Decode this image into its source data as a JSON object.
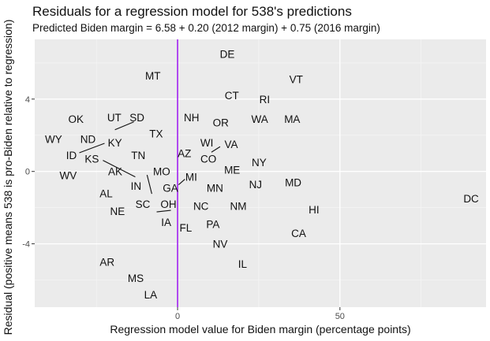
{
  "chart_data": {
    "type": "scatter",
    "title": "Residuals for a regression model for 538's predictions",
    "subtitle": "Predicted Biden margin = 6.58 + 0.20 (2012 margin) + 0.75 (2016 margin)",
    "xlabel": "Regression model value for Biden margin (percentage points)",
    "ylabel": "Residual (positive means 538 is pro-Biden relative to regression)",
    "xlim": [
      -44,
      95
    ],
    "ylim": [
      -7.5,
      7.3
    ],
    "x_ticks": [
      0,
      50
    ],
    "y_ticks": [
      -4,
      0,
      4
    ],
    "grid": true,
    "vline": {
      "x": 0,
      "color": "#a020f0"
    },
    "colors": {
      "panel": "#ebebeb",
      "grid_major": "#ffffff",
      "grid_minor": "#f5f5f5",
      "text": "#111111"
    },
    "points": [
      {
        "label": "DE",
        "x": 15.3,
        "y": 6.5
      },
      {
        "label": "MT",
        "x": -7.6,
        "y": 5.3
      },
      {
        "label": "VT",
        "x": 36.5,
        "y": 5.1
      },
      {
        "label": "CT",
        "x": 16.7,
        "y": 4.2
      },
      {
        "label": "RI",
        "x": 26.8,
        "y": 4.0
      },
      {
        "label": "OK",
        "x": -31.3,
        "y": 2.9
      },
      {
        "label": "UT",
        "x": -19.5,
        "y": 3.0
      },
      {
        "label": "SD",
        "x": -12.5,
        "y": 3.0
      },
      {
        "label": "NH",
        "x": 4.3,
        "y": 3.0
      },
      {
        "label": "OR",
        "x": 13.3,
        "y": 2.7
      },
      {
        "label": "WA",
        "x": 25.3,
        "y": 2.9
      },
      {
        "label": "MA",
        "x": 35.3,
        "y": 2.9
      },
      {
        "label": "TX",
        "x": -6.6,
        "y": 2.1
      },
      {
        "label": "WY",
        "x": -38.2,
        "y": 1.8
      },
      {
        "label": "ND",
        "x": -27.6,
        "y": 1.8
      },
      {
        "label": "KY",
        "x": -19.3,
        "y": 1.6
      },
      {
        "label": "WI",
        "x": 9.0,
        "y": 1.6
      },
      {
        "label": "VA",
        "x": 16.5,
        "y": 1.5
      },
      {
        "label": "ID",
        "x": -32.7,
        "y": 0.9
      },
      {
        "label": "KS",
        "x": -26.4,
        "y": 0.7
      },
      {
        "label": "TN",
        "x": -12.1,
        "y": 0.9
      },
      {
        "label": "AZ",
        "x": 2.1,
        "y": 1.0
      },
      {
        "label": "CO",
        "x": 9.5,
        "y": 0.7
      },
      {
        "label": "NY",
        "x": 25.1,
        "y": 0.5
      },
      {
        "label": "ME",
        "x": 16.8,
        "y": 0.1
      },
      {
        "label": "WV",
        "x": -33.7,
        "y": -0.2
      },
      {
        "label": "AK",
        "x": -19.2,
        "y": 0.0
      },
      {
        "label": "MO",
        "x": -4.9,
        "y": 0.0
      },
      {
        "label": "MI",
        "x": 4.2,
        "y": -0.3
      },
      {
        "label": "MD",
        "x": 35.6,
        "y": -0.6
      },
      {
        "label": "NJ",
        "x": 24.0,
        "y": -0.7
      },
      {
        "label": "IN",
        "x": -12.8,
        "y": -0.8
      },
      {
        "label": "GA",
        "x": -2.2,
        "y": -0.9
      },
      {
        "label": "MN",
        "x": 11.5,
        "y": -0.9
      },
      {
        "label": "AL",
        "x": -22.0,
        "y": -1.2
      },
      {
        "label": "DC",
        "x": 90.4,
        "y": -1.5
      },
      {
        "label": "SC",
        "x": -10.7,
        "y": -1.8
      },
      {
        "label": "OH",
        "x": -2.8,
        "y": -1.8
      },
      {
        "label": "NC",
        "x": 7.2,
        "y": -1.9
      },
      {
        "label": "NM",
        "x": 18.7,
        "y": -1.9
      },
      {
        "label": "NE",
        "x": -18.5,
        "y": -2.2
      },
      {
        "label": "HI",
        "x": 42.0,
        "y": -2.1
      },
      {
        "label": "IA",
        "x": -3.5,
        "y": -2.8
      },
      {
        "label": "PA",
        "x": 10.9,
        "y": -2.9
      },
      {
        "label": "FL",
        "x": 2.5,
        "y": -3.1
      },
      {
        "label": "CA",
        "x": 37.3,
        "y": -3.4
      },
      {
        "label": "NV",
        "x": 13.1,
        "y": -4.0
      },
      {
        "label": "AR",
        "x": -21.7,
        "y": -5.0
      },
      {
        "label": "IL",
        "x": 20.0,
        "y": -5.1
      },
      {
        "label": "MS",
        "x": -12.9,
        "y": -5.9
      },
      {
        "label": "LA",
        "x": -8.3,
        "y": -6.8
      }
    ]
  }
}
